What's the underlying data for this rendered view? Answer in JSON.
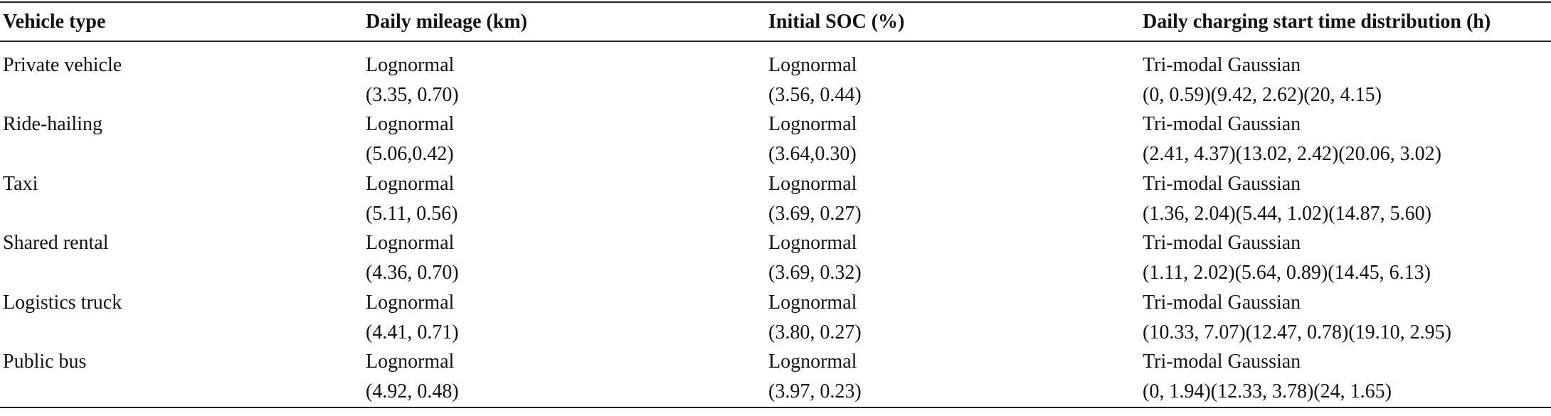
{
  "table": {
    "header": [
      "Vehicle type",
      "Daily mileage (km)",
      "Initial SOC (%)",
      "Daily charging start time distribution (h)"
    ],
    "rows": [
      [
        "Private vehicle",
        [
          "Lognormal",
          "(3.35, 0.70)"
        ],
        [
          "Lognormal",
          "(3.56, 0.44)"
        ],
        [
          "Tri-modal Gaussian",
          "(0, 0.59)(9.42, 2.62)(20, 4.15)"
        ]
      ],
      [
        "Ride-hailing",
        [
          "Lognormal",
          "(5.06,0.42)"
        ],
        [
          "Lognormal",
          "(3.64,0.30)"
        ],
        [
          "Tri-modal Gaussian",
          "(2.41, 4.37)(13.02, 2.42)(20.06, 3.02)"
        ]
      ],
      [
        "Taxi",
        [
          "Lognormal",
          "(5.11, 0.56)"
        ],
        [
          "Lognormal",
          "(3.69, 0.27)"
        ],
        [
          "Tri-modal Gaussian",
          "(1.36, 2.04)(5.44, 1.02)(14.87, 5.60)"
        ]
      ],
      [
        "Shared rental",
        [
          "Lognormal",
          "(4.36, 0.70)"
        ],
        [
          "Lognormal",
          "(3.69, 0.32)"
        ],
        [
          "Tri-modal Gaussian",
          "(1.11, 2.02)(5.64, 0.89)(14.45, 6.13)"
        ]
      ],
      [
        "Logistics truck",
        [
          "Lognormal",
          "(4.41, 0.71)"
        ],
        [
          "Lognormal",
          "(3.80, 0.27)"
        ],
        [
          "Tri-modal Gaussian",
          "(10.33, 7.07)(12.47, 0.78)(19.10, 2.95)"
        ]
      ],
      [
        "Public bus",
        [
          "Lognormal",
          "(4.92, 0.48)"
        ],
        [
          "Lognormal",
          "(3.97, 0.23)"
        ],
        [
          "Tri-modal Gaussian",
          "(0, 1.94)(12.33, 3.78)(24, 1.65)"
        ]
      ]
    ]
  }
}
